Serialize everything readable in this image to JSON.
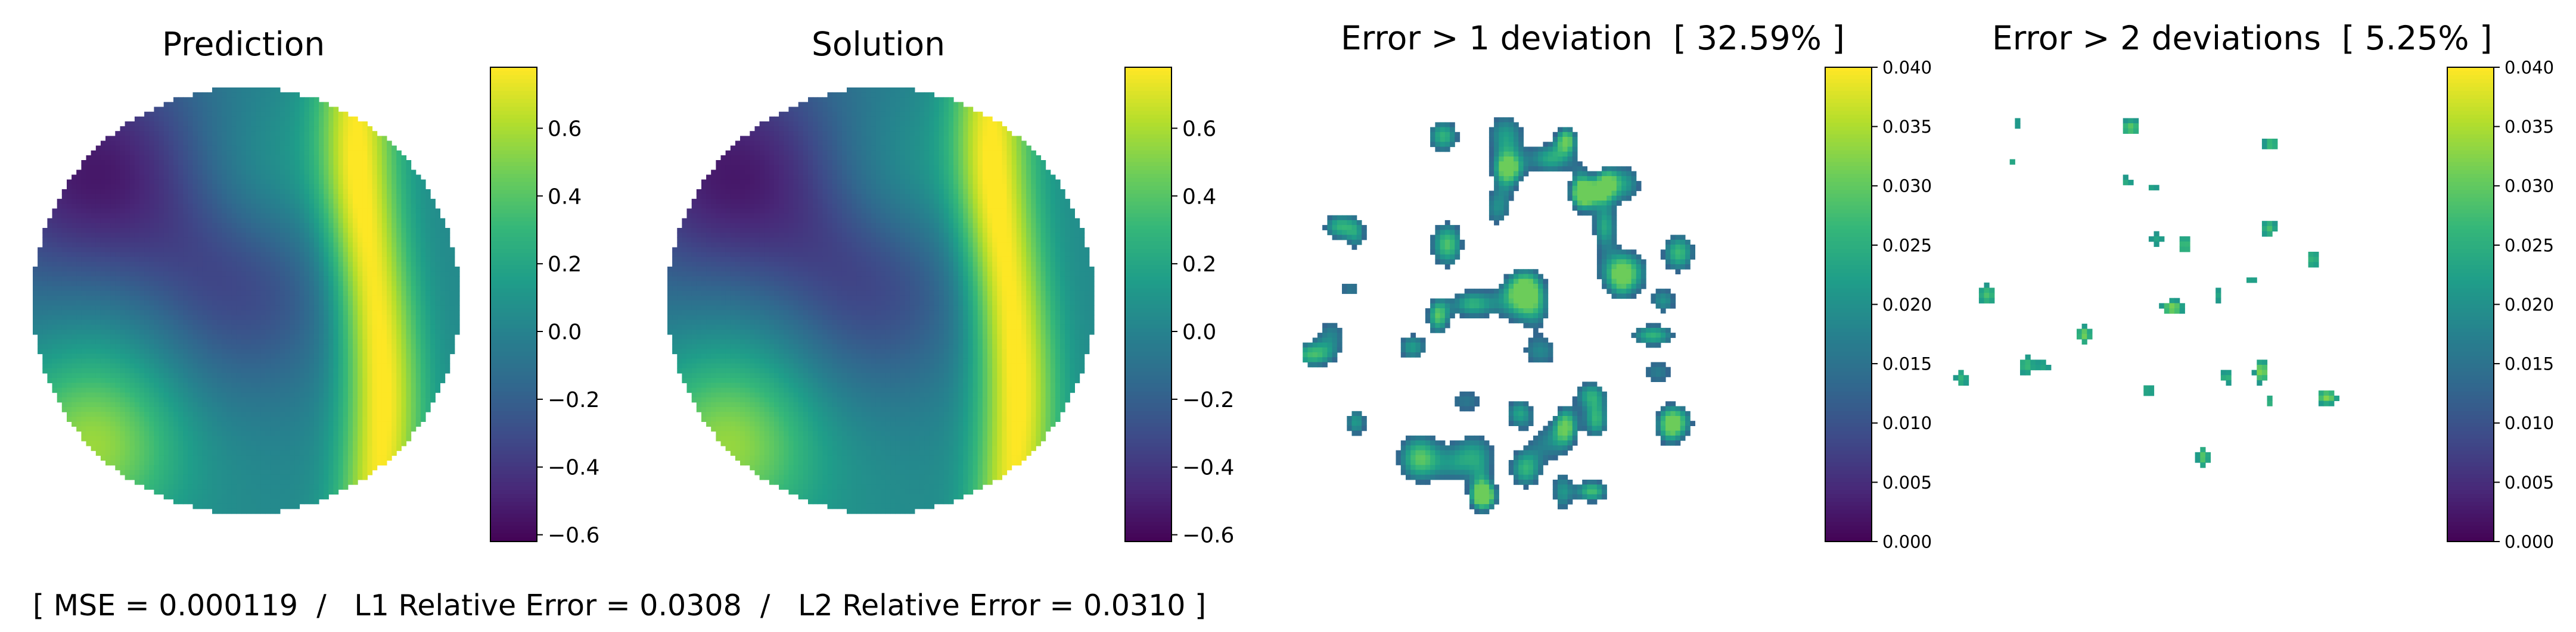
{
  "figure": {
    "footer": "[ MSE = 0.000119  /   L1 Relative Error = 0.0308  /   L2 Relative Error = 0.0310 ]"
  },
  "chart_data": [
    {
      "type": "heatmap",
      "title": "Prediction",
      "colormap": "viridis",
      "domain_shape": "disk",
      "colorbar": {
        "vmin": -0.62,
        "vmax": 0.78,
        "ticks": [
          "0.6",
          "0.4",
          "0.2",
          "0.0",
          "−0.2",
          "−0.4",
          "−0.6"
        ]
      },
      "grid": false
    },
    {
      "type": "heatmap",
      "title": "Solution",
      "colormap": "viridis",
      "domain_shape": "disk",
      "colorbar": {
        "vmin": -0.62,
        "vmax": 0.78,
        "ticks": [
          "0.6",
          "0.4",
          "0.2",
          "0.0",
          "−0.2",
          "−0.4",
          "−0.6"
        ]
      },
      "grid": false
    },
    {
      "type": "heatmap",
      "title": "Error > 1 deviation  [ 32.59% ]",
      "colormap": "viridis",
      "domain_shape": "disk",
      "threshold_fraction_percent": 32.59,
      "colorbar": {
        "vmin": 0.0,
        "vmax": 0.04,
        "ticks": [
          "0.040",
          "0.035",
          "0.030",
          "0.025",
          "0.020",
          "0.015",
          "0.010",
          "0.005",
          "0.000"
        ]
      },
      "grid": false
    },
    {
      "type": "heatmap",
      "title": "Error > 2 deviations  [ 5.25% ]",
      "colormap": "viridis",
      "domain_shape": "disk",
      "threshold_fraction_percent": 5.25,
      "colorbar": {
        "vmin": 0.0,
        "vmax": 0.04,
        "ticks": [
          "0.040",
          "0.035",
          "0.030",
          "0.025",
          "0.020",
          "0.015",
          "0.010",
          "0.005",
          "0.000"
        ]
      },
      "grid": false
    }
  ]
}
